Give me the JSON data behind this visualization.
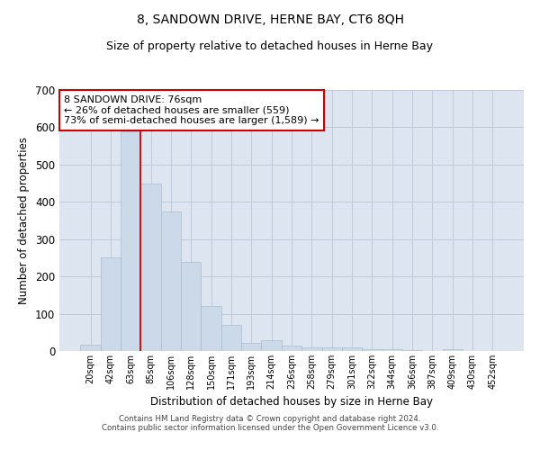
{
  "title": "8, SANDOWN DRIVE, HERNE BAY, CT6 8QH",
  "subtitle": "Size of property relative to detached houses in Herne Bay",
  "xlabel": "Distribution of detached houses by size in Herne Bay",
  "ylabel": "Number of detached properties",
  "bar_color": "#ccd9e8",
  "bar_edge_color": "#a8bdd0",
  "grid_color": "#c0cad8",
  "background_color": "#dde6f0",
  "categories": [
    "20sqm",
    "42sqm",
    "63sqm",
    "85sqm",
    "106sqm",
    "128sqm",
    "150sqm",
    "171sqm",
    "193sqm",
    "214sqm",
    "236sqm",
    "258sqm",
    "279sqm",
    "301sqm",
    "322sqm",
    "344sqm",
    "366sqm",
    "387sqm",
    "409sqm",
    "430sqm",
    "452sqm"
  ],
  "values": [
    18,
    250,
    590,
    450,
    375,
    238,
    120,
    70,
    22,
    30,
    14,
    10,
    9,
    9,
    5,
    4,
    2,
    0,
    5,
    0,
    0
  ],
  "ylim": [
    0,
    700
  ],
  "yticks": [
    0,
    100,
    200,
    300,
    400,
    500,
    600,
    700
  ],
  "property_line_bar_index": 2.5,
  "property_label": "8 SANDOWN DRIVE: 76sqm",
  "property_sub1": "← 26% of detached houses are smaller (559)",
  "property_sub2": "73% of semi-detached houses are larger (1,589) →",
  "annotation_box_color": "#ffffff",
  "annotation_box_edge": "#cc0000",
  "property_line_color": "#cc0000",
  "title_fontsize": 10,
  "subtitle_fontsize": 9,
  "footer1": "Contains HM Land Registry data © Crown copyright and database right 2024.",
  "footer2": "Contains public sector information licensed under the Open Government Licence v3.0."
}
